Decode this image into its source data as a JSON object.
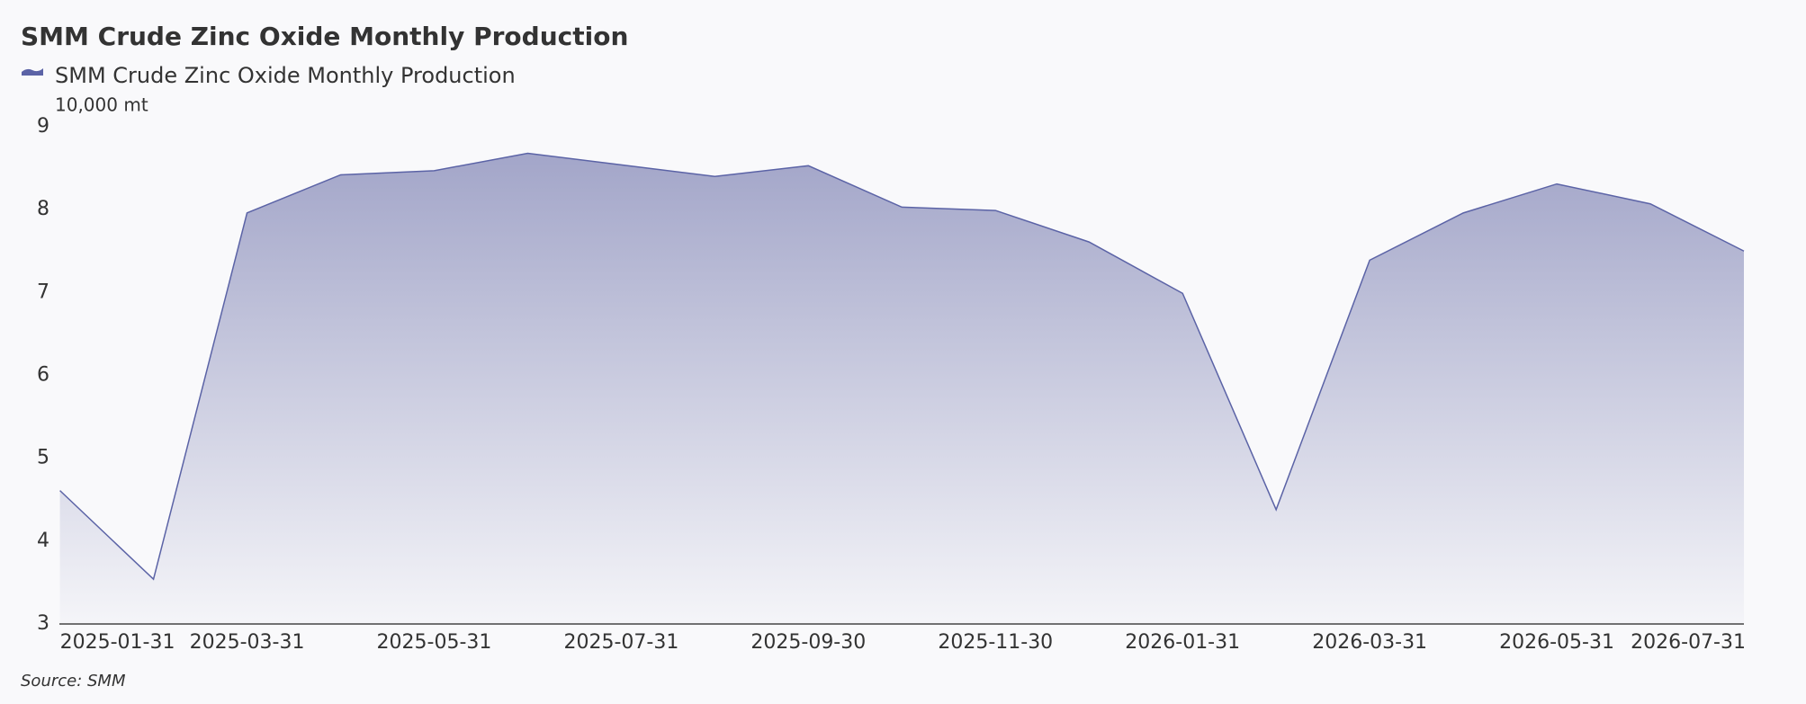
{
  "chart_data": {
    "type": "area",
    "title": "SMM Crude Zinc Oxide Monthly Production",
    "y_label": "10,000 mt",
    "source": "Source:  SMM",
    "categories": [
      "2025-01-31",
      null,
      "2025-03-31",
      null,
      "2025-05-31",
      null,
      "2025-07-31",
      null,
      "2025-09-30",
      null,
      "2025-11-30",
      null,
      "2026-01-31",
      null,
      "2026-03-31",
      null,
      "2026-05-31",
      null,
      "2026-07-31"
    ],
    "series": [
      {
        "name": "SMM Crude Zinc Oxide Monthly Production",
        "color": "#5b63a6",
        "values": [
          4.61,
          3.54,
          7.96,
          8.42,
          8.47,
          8.68,
          8.54,
          8.4,
          8.53,
          8.03,
          7.99,
          7.61,
          6.99,
          4.38,
          7.39,
          7.96,
          8.31,
          8.07,
          7.5
        ]
      }
    ],
    "ylim": [
      3,
      9
    ],
    "yticks": [
      3,
      4,
      5,
      6,
      7,
      8,
      9
    ],
    "grid": false
  }
}
